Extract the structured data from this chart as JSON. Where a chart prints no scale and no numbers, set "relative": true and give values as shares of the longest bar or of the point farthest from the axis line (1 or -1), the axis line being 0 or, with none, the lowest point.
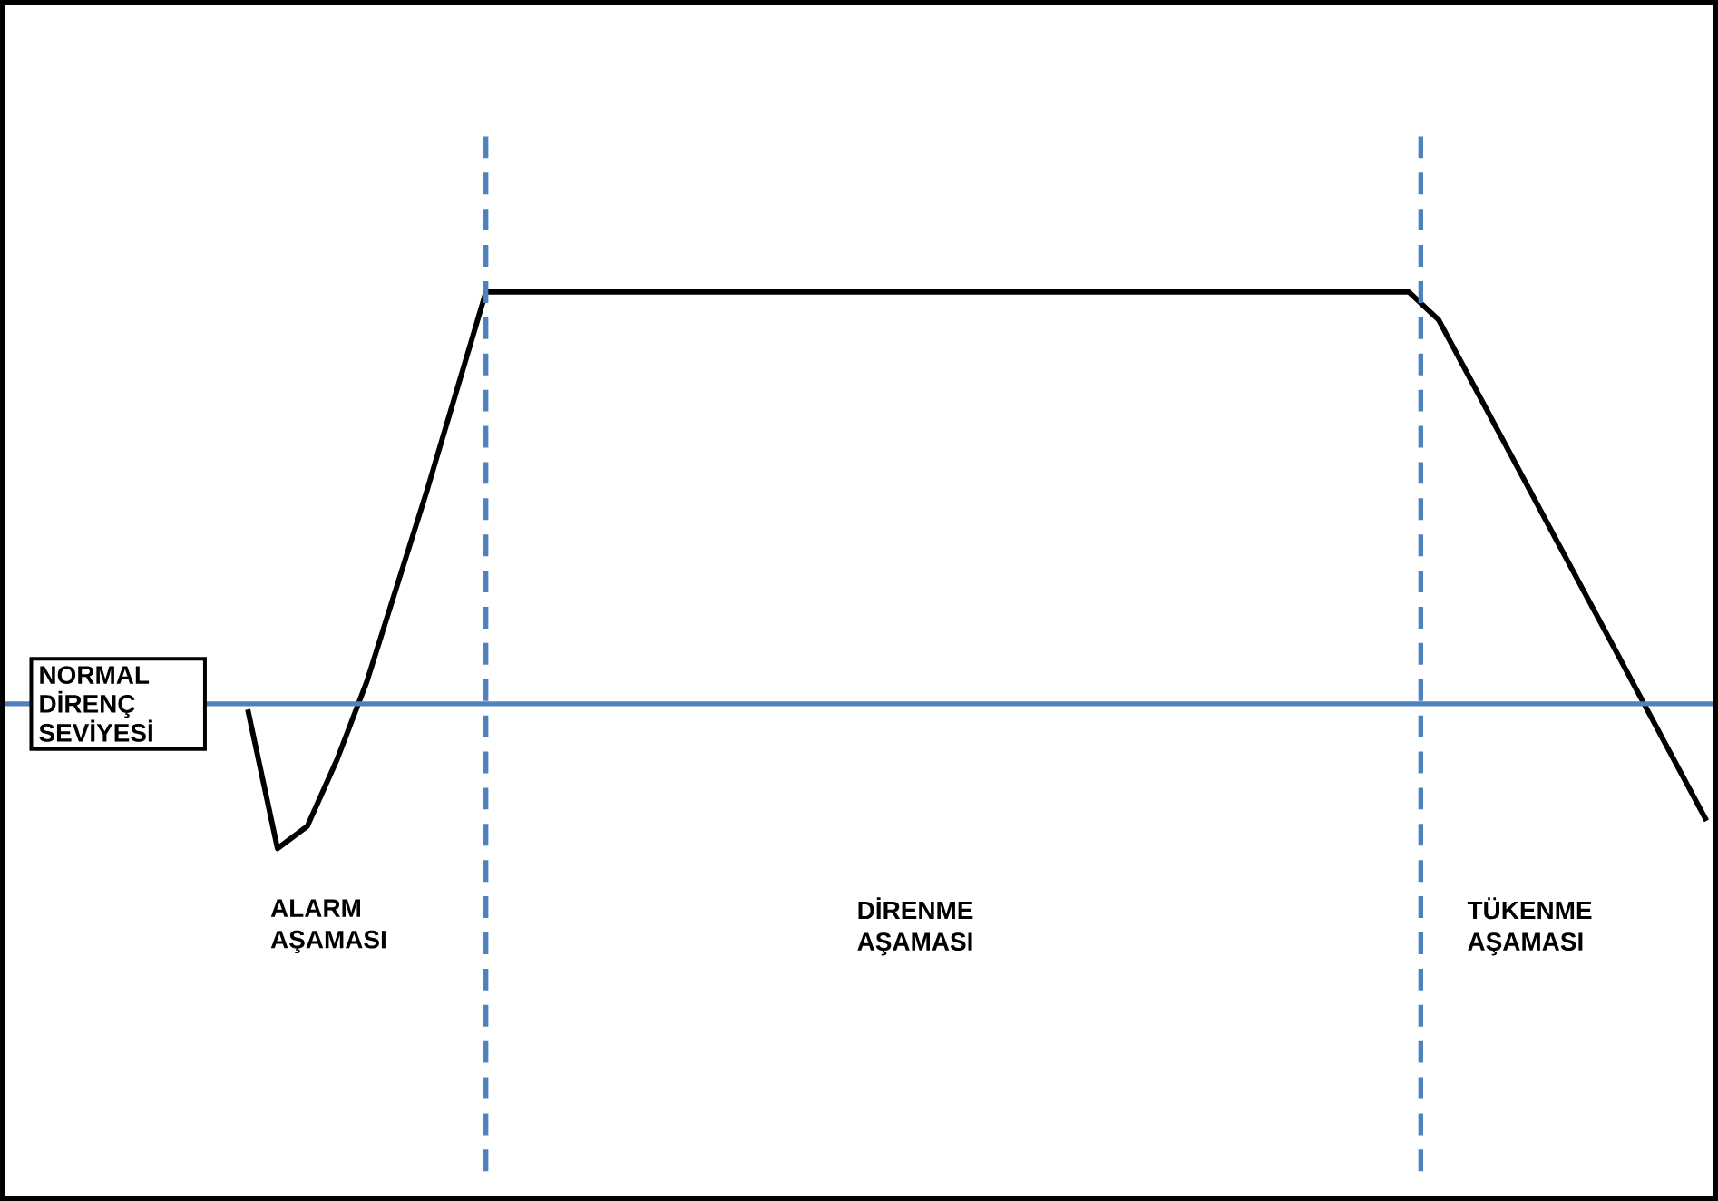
{
  "chart_data": {
    "type": "line",
    "relative": true,
    "categories": [
      null,
      null,
      null,
      null,
      null,
      null,
      null,
      null,
      null,
      null,
      null,
      null,
      null,
      null,
      null,
      null,
      null,
      null,
      null,
      null,
      null,
      null,
      null,
      null,
      null,
      null,
      null,
      null,
      null,
      null,
      null,
      null,
      null,
      null,
      null,
      null,
      null,
      null,
      null,
      null,
      null,
      null,
      null,
      null,
      null,
      null,
      null,
      null,
      null,
      null
    ],
    "series": [
      {
        "color": "#000000",
        "values": [
          0.25,
          0,
          0.04,
          0.16,
          0.3,
          0.47,
          0.64,
          0.82,
          1,
          1,
          1,
          1,
          1,
          1,
          1,
          1,
          1,
          1,
          1,
          1,
          1,
          1,
          1,
          1,
          1,
          1,
          1,
          1,
          1,
          1,
          1,
          1,
          1,
          1,
          1,
          1,
          1,
          1,
          1,
          1,
          0.95,
          0.85,
          0.75,
          0.65,
          0.55,
          0.45,
          0.35,
          0.25,
          0.15,
          0.05
        ]
      }
    ],
    "ref_lines": [
      {
        "axis": "y",
        "value": 0.26,
        "label": "NORMAL DİRENÇ SEVİYESİ",
        "color": "#4f81bd"
      }
    ],
    "annotations": [
      "ALARM AŞAMASI",
      "DİRENME AŞAMASI",
      "TÜKENME AŞAMASI"
    ]
  }
}
